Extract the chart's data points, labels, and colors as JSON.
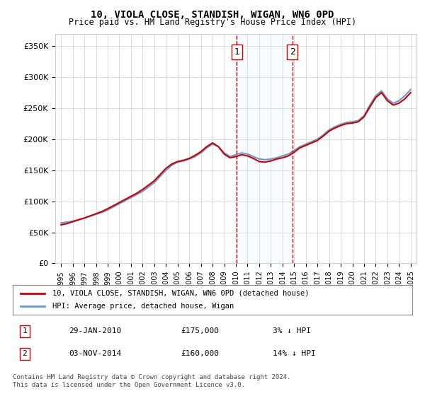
{
  "title": "10, VIOLA CLOSE, STANDISH, WIGAN, WN6 0PD",
  "subtitle": "Price paid vs. HM Land Registry's House Price Index (HPI)",
  "legend_line1": "10, VIOLA CLOSE, STANDISH, WIGAN, WN6 0PD (detached house)",
  "legend_line2": "HPI: Average price, detached house, Wigan",
  "sale1_label": "1",
  "sale1_date": "29-JAN-2010",
  "sale1_price": "£175,000",
  "sale1_hpi": "3% ↓ HPI",
  "sale2_label": "2",
  "sale2_date": "03-NOV-2014",
  "sale2_price": "£160,000",
  "sale2_hpi": "14% ↓ HPI",
  "footer": "Contains HM Land Registry data © Crown copyright and database right 2024.\nThis data is licensed under the Open Government Licence v3.0.",
  "sale1_x": 2010.08,
  "sale2_x": 2014.84,
  "hpi_color": "#6699cc",
  "price_color": "#cc0000",
  "shade_color": "#ddeeff",
  "vline_color": "#cc0000",
  "bg_color": "#ffffff",
  "grid_color": "#cccccc",
  "ylim": [
    0,
    370000
  ],
  "xlim": [
    1994.5,
    2025.5
  ],
  "yticks": [
    0,
    50000,
    100000,
    150000,
    200000,
    250000,
    300000,
    350000
  ],
  "ytick_labels": [
    "£0",
    "£50K",
    "£100K",
    "£150K",
    "£200K",
    "£250K",
    "£300K",
    "£350K"
  ],
  "xticks": [
    1995,
    1996,
    1997,
    1998,
    1999,
    2000,
    2001,
    2002,
    2003,
    2004,
    2005,
    2006,
    2007,
    2008,
    2009,
    2010,
    2011,
    2012,
    2013,
    2014,
    2015,
    2016,
    2017,
    2018,
    2019,
    2020,
    2021,
    2022,
    2023,
    2024,
    2025
  ],
  "hpi_x": [
    1995,
    1995.5,
    1996,
    1996.5,
    1997,
    1997.5,
    1998,
    1998.5,
    1999,
    1999.5,
    2000,
    2000.5,
    2001,
    2001.5,
    2002,
    2002.5,
    2003,
    2003.5,
    2004,
    2004.5,
    2005,
    2005.5,
    2006,
    2006.5,
    2007,
    2007.5,
    2008,
    2008.5,
    2009,
    2009.5,
    2010,
    2010.5,
    2011,
    2011.5,
    2012,
    2012.5,
    2013,
    2013.5,
    2014,
    2014.5,
    2015,
    2015.5,
    2016,
    2016.5,
    2017,
    2017.5,
    2018,
    2018.5,
    2019,
    2019.5,
    2020,
    2020.5,
    2021,
    2021.5,
    2022,
    2022.5,
    2023,
    2023.5,
    2024,
    2024.5,
    2025
  ],
  "hpi_y": [
    65000,
    66500,
    68000,
    70500,
    73000,
    76000,
    79000,
    82000,
    86000,
    91000,
    96000,
    101000,
    106000,
    111000,
    116000,
    123000,
    130000,
    140000,
    150000,
    158000,
    163000,
    165000,
    168000,
    172000,
    178000,
    186000,
    192000,
    188000,
    178000,
    172000,
    175000,
    178000,
    176000,
    172000,
    168000,
    167000,
    168000,
    170000,
    173000,
    176000,
    182000,
    188000,
    192000,
    196000,
    200000,
    207000,
    215000,
    220000,
    224000,
    227000,
    228000,
    230000,
    238000,
    255000,
    270000,
    278000,
    265000,
    258000,
    262000,
    270000,
    280000
  ],
  "price_x": [
    1995,
    1995.5,
    1996,
    1996.5,
    1997,
    1997.5,
    1998,
    1998.5,
    1999,
    1999.5,
    2000,
    2000.5,
    2001,
    2001.5,
    2002,
    2002.5,
    2003,
    2003.5,
    2004,
    2004.5,
    2005,
    2005.5,
    2006,
    2006.5,
    2007,
    2007.5,
    2008,
    2008.5,
    2009,
    2009.5,
    2010,
    2010.5,
    2011,
    2011.5,
    2012,
    2012.5,
    2013,
    2013.5,
    2014,
    2014.5,
    2015,
    2015.5,
    2016,
    2016.5,
    2017,
    2017.5,
    2018,
    2018.5,
    2019,
    2019.5,
    2020,
    2020.5,
    2021,
    2021.5,
    2022,
    2022.5,
    2023,
    2023.5,
    2024,
    2024.5,
    2025
  ],
  "price_y": [
    62000,
    64000,
    67000,
    70000,
    73000,
    76500,
    80000,
    83500,
    88000,
    93000,
    98000,
    103000,
    108000,
    113000,
    119000,
    126000,
    133000,
    143000,
    153000,
    160000,
    164000,
    166000,
    169000,
    174000,
    180000,
    188000,
    194000,
    188000,
    176000,
    170000,
    172000,
    175000,
    173000,
    169000,
    164000,
    163000,
    165000,
    168000,
    170000,
    173000,
    179000,
    186000,
    190000,
    194000,
    198000,
    205000,
    213000,
    218000,
    222000,
    225000,
    226000,
    228000,
    236000,
    252000,
    267000,
    275000,
    262000,
    255000,
    258000,
    265000,
    275000
  ]
}
